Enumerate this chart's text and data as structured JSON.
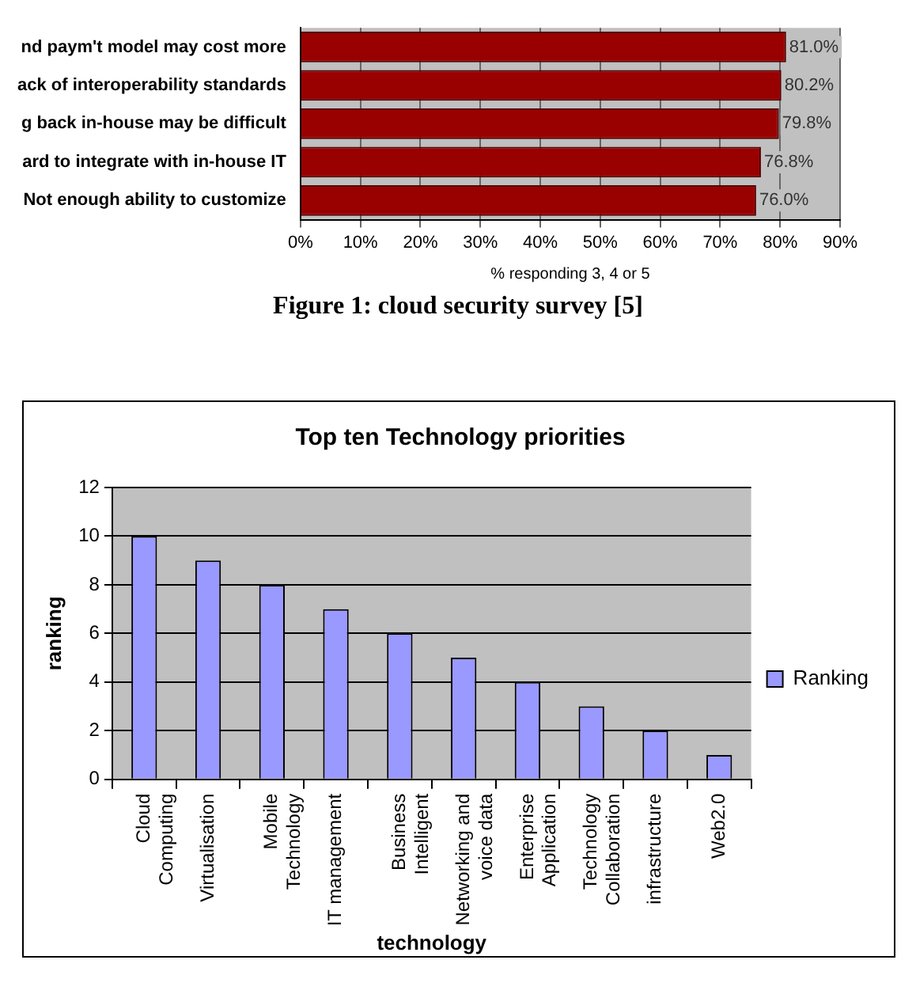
{
  "chart_data": [
    {
      "type": "bar",
      "orientation": "horizontal",
      "categories": [
        "nd paym't model may cost more",
        "ack of interoperability standards",
        "g back in-house may be difficult",
        "ard to integrate with in-house IT",
        "Not enough ability to customize"
      ],
      "values": [
        81.0,
        80.2,
        79.8,
        76.8,
        76.0
      ],
      "color": "#990000",
      "value_labels": [
        "81.0%",
        "80.2%",
        "79.8%",
        "76.8%",
        "76.0%"
      ],
      "xlim": [
        0,
        90
      ],
      "xticks": [
        {
          "value": 0,
          "label": "0%"
        },
        {
          "value": 10,
          "label": "10%"
        },
        {
          "value": 20,
          "label": "20%"
        },
        {
          "value": 30,
          "label": "30%"
        },
        {
          "value": 40,
          "label": "40%"
        },
        {
          "value": 50,
          "label": "50%"
        },
        {
          "value": 60,
          "label": "60%"
        },
        {
          "value": 70,
          "label": "70%"
        },
        {
          "value": 80,
          "label": "80%"
        },
        {
          "value": 90,
          "label": "90%"
        }
      ],
      "xlabel": "% responding 3, 4 or 5",
      "grid": "x",
      "annotations": [
        "Figure 1: cloud security survey [5]"
      ]
    },
    {
      "type": "bar",
      "title": "Top ten Technology priorities",
      "categories": [
        "Cloud Computing",
        "Virtualisation",
        "Mobile Technology",
        "IT management",
        "Business Intelligent",
        "Networking and voice data",
        "Enterprise Application",
        "Technology Collaboration",
        "infrastructure",
        "Web2.0"
      ],
      "series": [
        {
          "name": "Ranking",
          "color": "#9999ff",
          "values": [
            10,
            9,
            8,
            7,
            6,
            5,
            4,
            3,
            2,
            1
          ]
        }
      ],
      "ylim": [
        0,
        12
      ],
      "yticks": [
        0,
        2,
        4,
        6,
        8,
        10,
        12
      ],
      "xlabel": "technology",
      "ylabel": "ranking",
      "grid": "y",
      "legend": "right"
    }
  ]
}
